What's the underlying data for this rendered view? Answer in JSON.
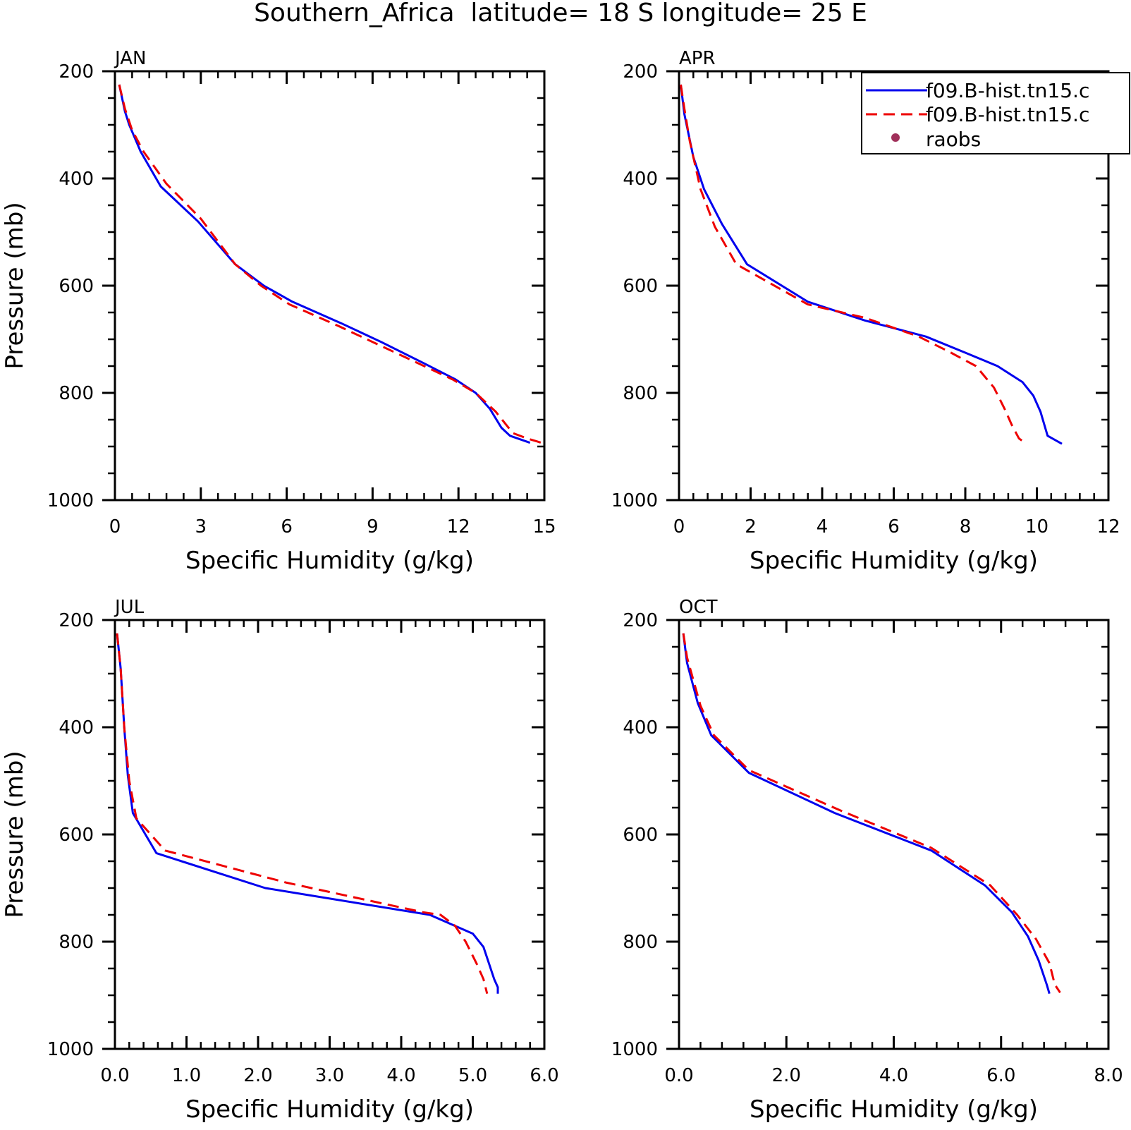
{
  "page_title": "Southern_Africa  latitude= 18 S longitude= 25 E",
  "colors": {
    "series1": "#0000ee",
    "series2": "#ee0000",
    "raobs": "#a0305a",
    "axes": "#000000"
  },
  "legend": {
    "entries": [
      {
        "label": "f09.B-hist.tn15.c",
        "style": "solid",
        "color": "#0000ee"
      },
      {
        "label": "f09.B-hist.tn15.c",
        "style": "dashed",
        "color": "#ee0000"
      },
      {
        "label": "raobs",
        "style": "marker",
        "color": "#a0305a"
      }
    ],
    "placement": "top-right of APR panel"
  },
  "chart_data": [
    {
      "type": "line",
      "panel": "JAN",
      "xlabel": "Specific Humidity (g/kg)",
      "ylabel": "Pressure (mb)",
      "xlim": [
        0,
        15
      ],
      "ylim": [
        200,
        1000
      ],
      "y_inverted": true,
      "xticks": [
        0,
        3,
        6,
        9,
        12,
        15
      ],
      "xtick_labels": [
        "0",
        "3",
        "6",
        "9",
        "12",
        "15"
      ],
      "yticks": [
        200,
        400,
        600,
        800,
        1000
      ],
      "ytick_labels": [
        "200",
        "400",
        "600",
        "800",
        "1000"
      ],
      "series": [
        {
          "style": "solid",
          "color": "#0000ee",
          "x": [
            0.15,
            0.35,
            0.5,
            0.9,
            1.6,
            2.9,
            4.2,
            5.2,
            6.2,
            7.9,
            9.3,
            10.8,
            11.9,
            12.6,
            13.1,
            13.5,
            13.8,
            14.5
          ],
          "y": [
            225,
            275,
            300,
            350,
            415,
            480,
            560,
            600,
            630,
            670,
            705,
            745,
            775,
            800,
            830,
            865,
            880,
            893
          ]
        },
        {
          "style": "dashed",
          "color": "#ee0000",
          "x": [
            0.15,
            0.35,
            0.6,
            1.0,
            1.8,
            3.0,
            4.2,
            5.1,
            6.1,
            7.8,
            9.2,
            10.6,
            11.8,
            12.6,
            13.3,
            13.9,
            14.4,
            14.9
          ],
          "y": [
            225,
            270,
            310,
            350,
            410,
            475,
            560,
            600,
            635,
            675,
            710,
            745,
            775,
            800,
            835,
            875,
            885,
            893
          ]
        }
      ]
    },
    {
      "type": "line",
      "panel": "APR",
      "xlabel": "Specific Humidity (g/kg)",
      "ylabel": "",
      "xlim": [
        0,
        12
      ],
      "ylim": [
        200,
        1000
      ],
      "y_inverted": true,
      "xticks": [
        0,
        2,
        4,
        6,
        8,
        10,
        12
      ],
      "xtick_labels": [
        "0",
        "2",
        "4",
        "6",
        "8",
        "10",
        "12"
      ],
      "yticks": [
        200,
        400,
        600,
        800,
        1000
      ],
      "ytick_labels": [
        "200",
        "400",
        "600",
        "800",
        "1000"
      ],
      "series": [
        {
          "style": "solid",
          "color": "#0000ee",
          "x": [
            0.05,
            0.15,
            0.4,
            0.7,
            1.2,
            1.9,
            3.6,
            5.2,
            6.9,
            8.0,
            8.9,
            9.6,
            9.9,
            10.1,
            10.3,
            10.7
          ],
          "y": [
            225,
            280,
            360,
            420,
            485,
            560,
            630,
            665,
            695,
            725,
            750,
            780,
            805,
            835,
            880,
            895
          ]
        },
        {
          "style": "dashed",
          "color": "#ee0000",
          "x": [
            0.05,
            0.15,
            0.3,
            0.6,
            1.0,
            1.6,
            3.6,
            5.2,
            6.7,
            7.6,
            8.3,
            8.8,
            9.1,
            9.3,
            9.5,
            9.7
          ],
          "y": [
            225,
            270,
            330,
            420,
            490,
            560,
            635,
            660,
            695,
            725,
            750,
            790,
            830,
            860,
            885,
            895
          ]
        }
      ]
    },
    {
      "type": "line",
      "panel": "JUL",
      "xlabel": "Specific Humidity (g/kg)",
      "ylabel": "Pressure (mb)",
      "xlim": [
        0,
        6
      ],
      "ylim": [
        200,
        1000
      ],
      "y_inverted": true,
      "xticks": [
        0,
        1,
        2,
        3,
        4,
        5,
        6
      ],
      "xtick_labels": [
        "0.0",
        "1.0",
        "2.0",
        "3.0",
        "4.0",
        "5.0",
        "6.0"
      ],
      "yticks": [
        200,
        400,
        600,
        800,
        1000
      ],
      "ytick_labels": [
        "200",
        "400",
        "600",
        "800",
        "1000"
      ],
      "series": [
        {
          "style": "solid",
          "color": "#0000ee",
          "x": [
            0.03,
            0.08,
            0.13,
            0.18,
            0.25,
            0.58,
            2.1,
            4.4,
            5.0,
            5.15,
            5.3,
            5.35,
            5.35
          ],
          "y": [
            225,
            290,
            400,
            490,
            560,
            635,
            700,
            750,
            785,
            810,
            870,
            885,
            897
          ]
        },
        {
          "style": "dashed",
          "color": "#ee0000",
          "x": [
            0.03,
            0.08,
            0.13,
            0.2,
            0.3,
            0.7,
            2.4,
            4.3,
            4.55,
            4.75,
            4.9,
            5.05,
            5.15,
            5.2
          ],
          "y": [
            225,
            290,
            400,
            500,
            570,
            630,
            690,
            745,
            750,
            770,
            800,
            840,
            870,
            897
          ]
        }
      ]
    },
    {
      "type": "line",
      "panel": "OCT",
      "xlabel": "Specific Humidity (g/kg)",
      "ylabel": "",
      "xlim": [
        0,
        8
      ],
      "ylim": [
        200,
        1000
      ],
      "y_inverted": true,
      "xticks": [
        0,
        2,
        4,
        6,
        8
      ],
      "xtick_labels": [
        "0.0",
        "2.0",
        "4.0",
        "6.0",
        "8.0"
      ],
      "yticks": [
        200,
        400,
        600,
        800,
        1000
      ],
      "ytick_labels": [
        "200",
        "400",
        "600",
        "800",
        "1000"
      ],
      "series": [
        {
          "style": "solid",
          "color": "#0000ee",
          "x": [
            0.08,
            0.15,
            0.35,
            0.6,
            1.3,
            2.9,
            4.7,
            5.7,
            6.2,
            6.5,
            6.7,
            6.85,
            6.9
          ],
          "y": [
            225,
            280,
            355,
            415,
            485,
            560,
            630,
            695,
            745,
            790,
            835,
            880,
            897
          ]
        },
        {
          "style": "dashed",
          "color": "#ee0000",
          "x": [
            0.08,
            0.15,
            0.4,
            0.65,
            1.3,
            3.0,
            4.7,
            5.8,
            6.3,
            6.65,
            6.9,
            7.0,
            7.1
          ],
          "y": [
            225,
            270,
            360,
            415,
            480,
            555,
            625,
            695,
            750,
            795,
            840,
            880,
            895
          ]
        }
      ]
    }
  ]
}
